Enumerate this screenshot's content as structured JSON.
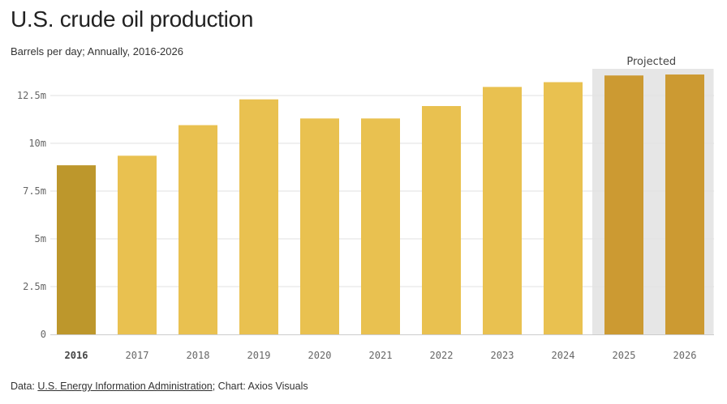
{
  "header": {
    "title": "U.S. crude oil production",
    "subtitle": "Barrels per day; Annually, 2016-2026"
  },
  "footer": {
    "prefix": "Data: ",
    "source_link": "U.S. Energy Information Administration",
    "suffix": "; Chart: Axios Visuals"
  },
  "colors": {
    "bar_default": "#e9c150",
    "bar_first": "#bd972c",
    "bar_projected": "#cc9a32",
    "projected_band": "#e6e6e6",
    "grid": "#e2e2e2",
    "baseline": "#cccccc"
  },
  "chart_data": {
    "type": "bar",
    "categories": [
      "2016",
      "2017",
      "2018",
      "2019",
      "2020",
      "2021",
      "2022",
      "2023",
      "2024",
      "2025",
      "2026"
    ],
    "values": [
      8.85,
      9.35,
      10.95,
      12.3,
      11.3,
      11.3,
      11.95,
      12.95,
      13.2,
      13.55,
      13.6
    ],
    "unit": "m",
    "ylim": [
      0,
      14
    ],
    "yticks": [
      0,
      2.5,
      5,
      7.5,
      10,
      12.5
    ],
    "ytick_labels": [
      "0",
      "2.5m",
      "5m",
      "7.5m",
      "10m",
      "12.5m"
    ],
    "projected_categories": [
      "2025",
      "2026"
    ],
    "projected_label": "Projected",
    "highlight_category": "2016",
    "grid": true
  }
}
